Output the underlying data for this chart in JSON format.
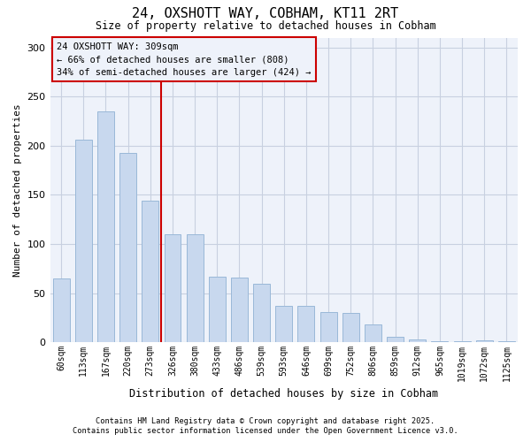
{
  "title": "24, OXSHOTT WAY, COBHAM, KT11 2RT",
  "subtitle": "Size of property relative to detached houses in Cobham",
  "xlabel": "Distribution of detached houses by size in Cobham",
  "ylabel": "Number of detached properties",
  "bar_values": [
    65,
    206,
    235,
    193,
    144,
    110,
    110,
    67,
    66,
    60,
    37,
    37,
    31,
    30,
    18,
    6,
    3,
    1,
    1,
    2,
    1
  ],
  "categories": [
    "60sqm",
    "113sqm",
    "167sqm",
    "220sqm",
    "273sqm",
    "326sqm",
    "380sqm",
    "433sqm",
    "486sqm",
    "539sqm",
    "593sqm",
    "646sqm",
    "699sqm",
    "752sqm",
    "806sqm",
    "859sqm",
    "912sqm",
    "965sqm",
    "1019sqm",
    "1072sqm",
    "1125sqm"
  ],
  "bar_color": "#c8d8ee",
  "bar_edge_color": "#9ab8d8",
  "annotation_box_text_line1": "24 OXSHOTT WAY: 309sqm",
  "annotation_box_text_line2": "← 66% of detached houses are smaller (808)",
  "annotation_box_text_line3": "34% of semi-detached houses are larger (424) →",
  "vline_color": "#cc0000",
  "vline_x_index": 4.5,
  "ylim": [
    0,
    310
  ],
  "yticks": [
    0,
    50,
    100,
    150,
    200,
    250,
    300
  ],
  "grid_color": "#c8d0e0",
  "background_color": "#eef2fa",
  "plot_bg_color": "#eef2fa",
  "footer_line1": "Contains HM Land Registry data © Crown copyright and database right 2025.",
  "footer_line2": "Contains public sector information licensed under the Open Government Licence v3.0."
}
